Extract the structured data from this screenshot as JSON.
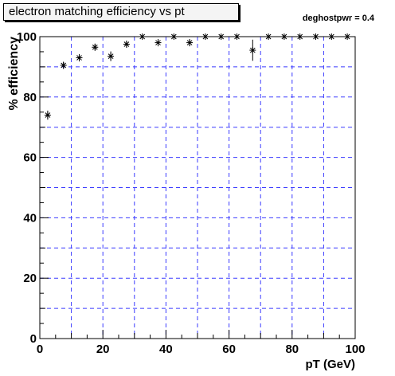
{
  "title": "electron matching efficiency vs pt",
  "annotation": "deghostpwr = 0.4",
  "chart_data": {
    "type": "scatter",
    "xlabel": "pT (GeV)",
    "ylabel": "% efficiency",
    "xlim": [
      0,
      100
    ],
    "ylim": [
      0,
      100
    ],
    "x_ticks": [
      0,
      20,
      40,
      60,
      80,
      100
    ],
    "y_ticks": [
      0,
      20,
      40,
      60,
      80,
      100
    ],
    "grid": true,
    "marker": "asterisk",
    "series": [
      {
        "x": [
          2.5,
          7.5,
          12.5,
          17.5,
          22.5,
          27.5,
          32.5,
          37.5,
          42.5,
          47.5,
          52.5,
          57.5,
          62.5,
          67.5,
          72.5,
          77.5,
          82.5,
          87.5,
          92.5,
          97.5
        ],
        "y": [
          74,
          90.5,
          93,
          96.5,
          93.5,
          97.5,
          100,
          98,
          100,
          98,
          100,
          100,
          100,
          95.5,
          100,
          100,
          100,
          100,
          100,
          100
        ],
        "yerr": [
          1.5,
          1.2,
          1.2,
          1.2,
          1.6,
          1.2,
          0,
          1.2,
          0,
          1.2,
          0,
          0,
          0,
          3.5,
          0,
          0,
          0,
          0,
          0,
          0
        ]
      }
    ]
  }
}
